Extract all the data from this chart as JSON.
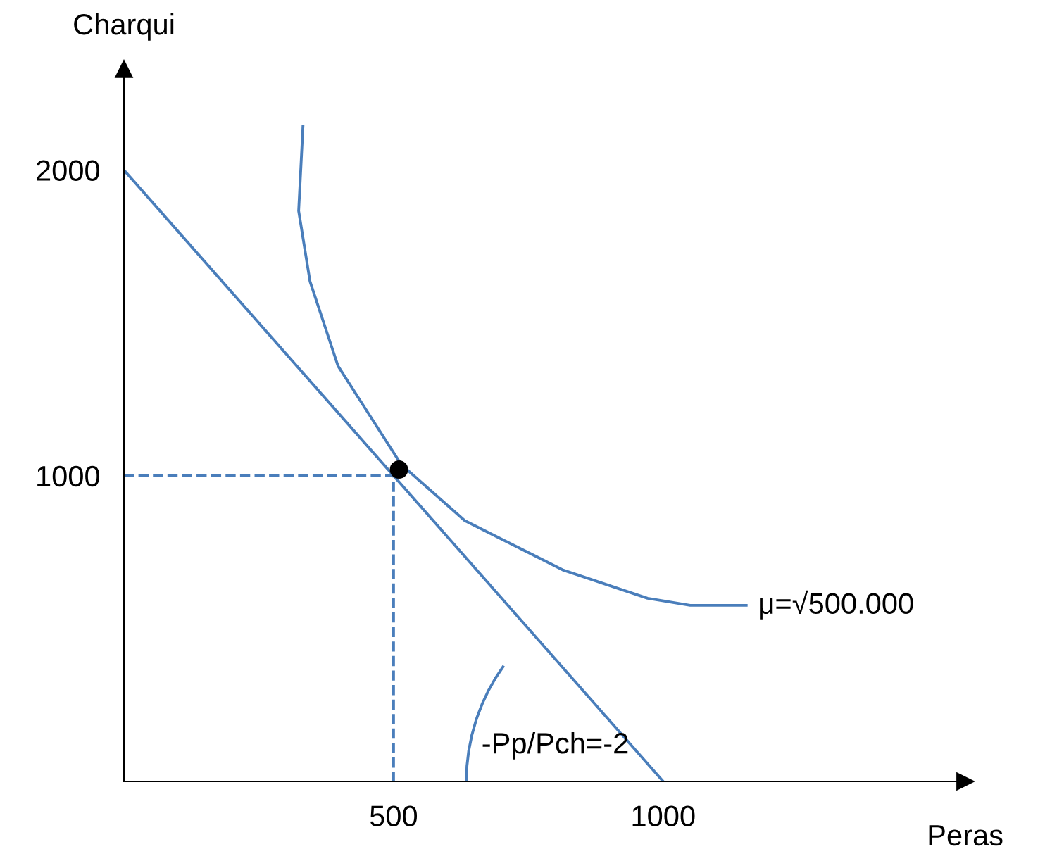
{
  "chart_data": {
    "type": "line",
    "xlabel": "Peras",
    "ylabel": "Charqui",
    "xlim": [
      0,
      1560
    ],
    "ylim": [
      0,
      2330
    ],
    "xticks": [
      500,
      1000
    ],
    "yticks": [
      1000,
      2000
    ],
    "grid": false,
    "legend": false,
    "series": [
      {
        "color": "#4a7ebb",
        "line_style": "solid",
        "x": [
          0,
          1000
        ],
        "values": [
          2000,
          0
        ]
      },
      {
        "color": "#4a7ebb",
        "line_style": "solid",
        "x": [
          332,
          324,
          345,
          397,
          514,
          632,
          815,
          971,
          1050,
          1154
        ],
        "values": [
          2143,
          1866,
          1636,
          1359,
          1037,
          853,
          691,
          599,
          576,
          576
        ]
      },
      {
        "color": "#4a7ebb",
        "line_style": "dashed",
        "x": [
          0,
          500,
          500
        ],
        "values": [
          1000,
          1000,
          0
        ]
      },
      {
        "type": "scatter",
        "color": "#000000",
        "marker": "circle",
        "x": [
          510
        ],
        "values": [
          1020
        ]
      }
    ],
    "annotations": [
      {
        "text": "μ=√500.000",
        "x": 1154,
        "y": 576
      },
      "-Pp/Pch=-2"
    ]
  }
}
